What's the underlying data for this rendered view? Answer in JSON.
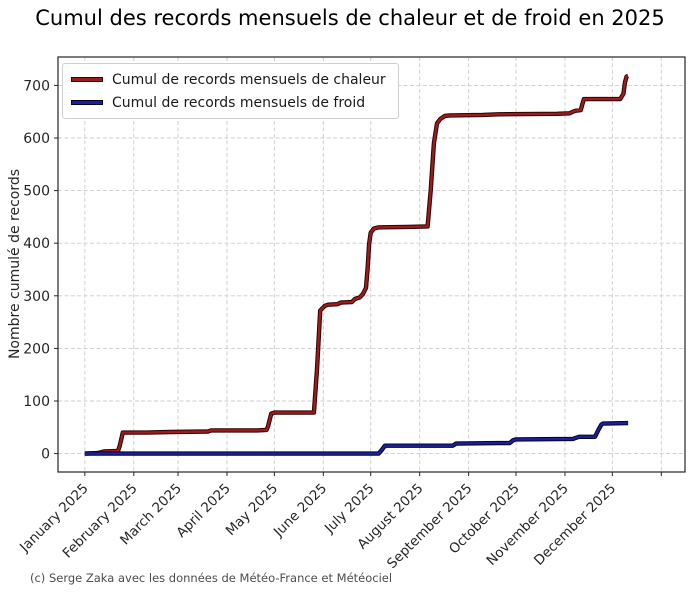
{
  "page": {
    "title": "Cumul des records mensuels de chaleur et de froid en 2025",
    "credit": "(c) Serge Zaka avec les données de Météo-France et Météociel"
  },
  "chart_data": {
    "type": "line",
    "title": "Cumul des records mensuels de chaleur et de froid en 2025",
    "xlabel": "",
    "ylabel": "Nombre cumulé de records",
    "grid": true,
    "grid_style": "dashed",
    "legend_position": "upper-left",
    "x_unit": "day of year 2025",
    "x_tick_labels": [
      "January 2025",
      "February 2025",
      "March 2025",
      "April 2025",
      "May 2025",
      "June 2025",
      "July 2025",
      "August 2025",
      "September 2025",
      "October 2025",
      "November 2025",
      "December 2025"
    ],
    "month_start_days": [
      1,
      32,
      60,
      91,
      121,
      152,
      182,
      213,
      244,
      274,
      305,
      335,
      366
    ],
    "y_ticks": [
      0,
      100,
      200,
      300,
      400,
      500,
      600,
      700
    ],
    "xlim_days": [
      -16,
      381
    ],
    "ylim": [
      -35,
      754
    ],
    "series": [
      {
        "name": "Cumul de records mensuels de chaleur",
        "color": "#9e1c1c",
        "edge_color": "#2a0404",
        "points_day_value": [
          [
            1,
            0
          ],
          [
            9,
            1
          ],
          [
            13,
            4
          ],
          [
            22,
            5
          ],
          [
            23,
            14
          ],
          [
            25,
            40
          ],
          [
            40,
            40
          ],
          [
            55,
            41
          ],
          [
            79,
            42
          ],
          [
            81,
            44
          ],
          [
            110,
            44
          ],
          [
            116,
            45
          ],
          [
            117,
            52
          ],
          [
            119,
            76
          ],
          [
            121,
            78
          ],
          [
            146,
            78
          ],
          [
            148,
            160
          ],
          [
            150,
            272
          ],
          [
            153,
            281
          ],
          [
            155,
            283
          ],
          [
            161,
            284
          ],
          [
            163,
            287
          ],
          [
            170,
            288
          ],
          [
            172,
            294
          ],
          [
            175,
            297
          ],
          [
            177,
            303
          ],
          [
            179,
            315
          ],
          [
            180,
            352
          ],
          [
            181,
            398
          ],
          [
            182,
            420
          ],
          [
            184,
            428
          ],
          [
            187,
            430
          ],
          [
            205,
            431
          ],
          [
            218,
            432
          ],
          [
            220,
            500
          ],
          [
            222,
            590
          ],
          [
            224,
            628
          ],
          [
            226,
            636
          ],
          [
            229,
            642
          ],
          [
            232,
            643
          ],
          [
            253,
            644
          ],
          [
            263,
            645
          ],
          [
            300,
            646
          ],
          [
            308,
            647
          ],
          [
            310,
            650
          ],
          [
            312,
            652
          ],
          [
            315,
            653
          ],
          [
            316,
            664
          ],
          [
            317,
            674
          ],
          [
            340,
            674
          ],
          [
            342,
            684
          ],
          [
            343,
            706
          ],
          [
            344,
            717
          ],
          [
            345,
            718
          ]
        ]
      },
      {
        "name": "Cumul de records mensuels de froid",
        "color": "#1b1f9e",
        "edge_color": "#04041f",
        "points_day_value": [
          [
            1,
            0
          ],
          [
            187,
            0
          ],
          [
            189,
            7
          ],
          [
            191,
            15
          ],
          [
            234,
            15
          ],
          [
            236,
            19
          ],
          [
            263,
            20
          ],
          [
            270,
            20
          ],
          [
            272,
            25
          ],
          [
            274,
            27
          ],
          [
            310,
            28
          ],
          [
            312,
            30
          ],
          [
            314,
            32
          ],
          [
            324,
            32
          ],
          [
            326,
            44
          ],
          [
            328,
            55
          ],
          [
            329,
            57
          ],
          [
            345,
            58
          ]
        ]
      }
    ]
  }
}
